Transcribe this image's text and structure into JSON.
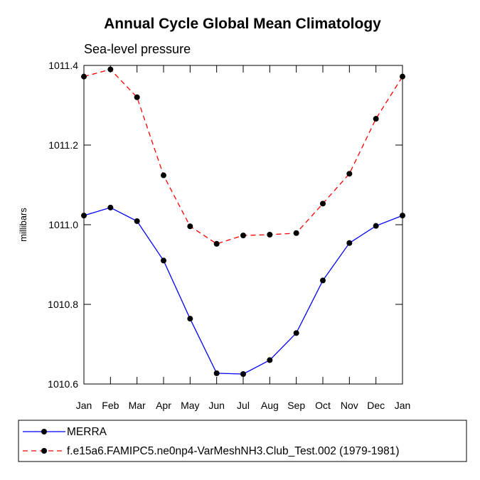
{
  "chart_data": {
    "type": "line",
    "title": "Annual Cycle Global Mean Climatology",
    "subtitle": "Sea-level pressure",
    "xlabel": "",
    "ylabel": "millibars",
    "categories": [
      "Jan",
      "Feb",
      "Mar",
      "Apr",
      "May",
      "Jun",
      "Jul",
      "Aug",
      "Sep",
      "Oct",
      "Nov",
      "Dec",
      "Jan"
    ],
    "ylim": [
      1010.6,
      1011.4
    ],
    "yticks": [
      1010.6,
      1010.8,
      1011.0,
      1011.2,
      1011.4
    ],
    "ytick_labels": [
      "1010.6",
      "1010.8",
      "1011.0",
      "1011.2",
      "1011.4"
    ],
    "grid": false,
    "legend_position": "bottom",
    "series": [
      {
        "name": "MERRA",
        "color": "#0000ff",
        "dash": "solid",
        "marker": "filled-circle",
        "values": [
          1011.023,
          1011.043,
          1011.009,
          1010.91,
          1010.764,
          1010.627,
          1010.625,
          1010.66,
          1010.728,
          1010.86,
          1010.954,
          1010.997,
          1011.023
        ]
      },
      {
        "name": "f.e15a6.FAMIPC5.ne0np4-VarMeshNH3.Club_Test.002 (1979-1981)",
        "color": "#ff0000",
        "dash": "dashed",
        "marker": "filled-circle",
        "values": [
          1011.372,
          1011.39,
          1011.32,
          1011.124,
          1010.996,
          1010.952,
          1010.973,
          1010.975,
          1010.979,
          1011.053,
          1011.128,
          1011.266,
          1011.372
        ]
      }
    ]
  }
}
